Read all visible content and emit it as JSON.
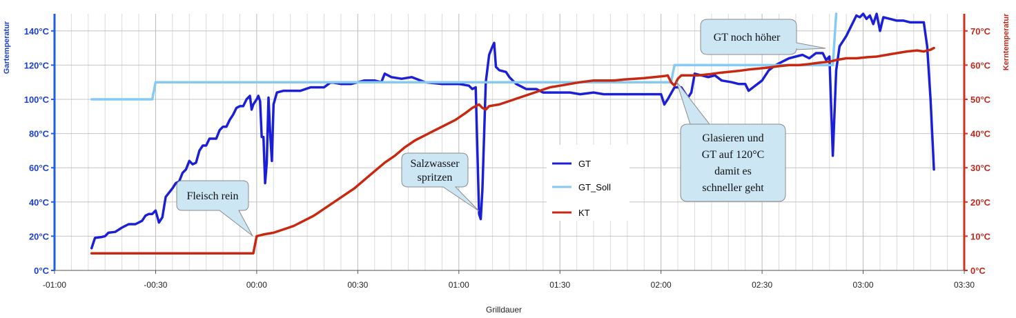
{
  "chart_data": {
    "type": "line",
    "xlabel": "Grilldauer",
    "ylabel_left": "Gartemperatur",
    "ylabel_right": "Kerntemperatur",
    "x_unit": "minutes",
    "xlim": [
      -60,
      210
    ],
    "x_ticks": [
      {
        "v": -60,
        "label": "-01:00"
      },
      {
        "v": -30,
        "label": "-00:30"
      },
      {
        "v": 0,
        "label": "00:00"
      },
      {
        "v": 30,
        "label": "00:30"
      },
      {
        "v": 60,
        "label": "01:00"
      },
      {
        "v": 90,
        "label": "01:30"
      },
      {
        "v": 120,
        "label": "02:00"
      },
      {
        "v": 150,
        "label": "02:30"
      },
      {
        "v": 180,
        "label": "03:00"
      },
      {
        "v": 210,
        "label": "03:30"
      }
    ],
    "ylim_left": [
      0,
      150
    ],
    "y_ticks_left": [
      {
        "v": 0,
        "label": "0°C"
      },
      {
        "v": 20,
        "label": "20°C"
      },
      {
        "v": 40,
        "label": "40°C"
      },
      {
        "v": 60,
        "label": "60°C"
      },
      {
        "v": 80,
        "label": "80°C"
      },
      {
        "v": 100,
        "label": "100°C"
      },
      {
        "v": 120,
        "label": "120°C"
      },
      {
        "v": 140,
        "label": "140°C"
      }
    ],
    "ylim_right": [
      0,
      75
    ],
    "y_ticks_right": [
      {
        "v": 0,
        "label": "0°C"
      },
      {
        "v": 10,
        "label": "10°C"
      },
      {
        "v": 20,
        "label": "20°C"
      },
      {
        "v": 30,
        "label": "30°C"
      },
      {
        "v": 40,
        "label": "40°C"
      },
      {
        "v": 50,
        "label": "50°C"
      },
      {
        "v": 60,
        "label": "60°C"
      },
      {
        "v": 70,
        "label": "70°C"
      }
    ],
    "grid": true,
    "legend_position": "center",
    "series": [
      {
        "name": "GT",
        "axis": "left",
        "color": "#1b1fd6",
        "points": [
          [
            -49,
            13
          ],
          [
            -48,
            19
          ],
          [
            -46,
            19.5
          ],
          [
            -45,
            20
          ],
          [
            -44,
            22
          ],
          [
            -42,
            22.5
          ],
          [
            -40,
            25
          ],
          [
            -38,
            27
          ],
          [
            -36,
            27
          ],
          [
            -34,
            29
          ],
          [
            -33,
            32
          ],
          [
            -32,
            33
          ],
          [
            -31,
            33
          ],
          [
            -30,
            35
          ],
          [
            -29,
            28
          ],
          [
            -28,
            31
          ],
          [
            -27,
            43
          ],
          [
            -25,
            48
          ],
          [
            -24,
            51
          ],
          [
            -23,
            52
          ],
          [
            -22,
            57
          ],
          [
            -21,
            59
          ],
          [
            -20,
            64
          ],
          [
            -19,
            62
          ],
          [
            -18,
            63
          ],
          [
            -17,
            70
          ],
          [
            -16,
            73
          ],
          [
            -15,
            73
          ],
          [
            -14,
            77
          ],
          [
            -13,
            77
          ],
          [
            -12,
            77
          ],
          [
            -11,
            82
          ],
          [
            -10,
            84
          ],
          [
            -9,
            84
          ],
          [
            -8,
            88
          ],
          [
            -7,
            91
          ],
          [
            -6,
            95
          ],
          [
            -5,
            96
          ],
          [
            -4,
            96
          ],
          [
            -3,
            100
          ],
          [
            -2,
            102
          ],
          [
            -1.5,
            94
          ],
          [
            -1,
            97
          ],
          [
            0,
            100
          ],
          [
            0.5,
            102
          ],
          [
            1,
            99
          ],
          [
            1.5,
            78
          ],
          [
            2,
            78
          ],
          [
            2.5,
            51
          ],
          [
            3,
            63
          ],
          [
            3.5,
            101
          ],
          [
            4,
            80
          ],
          [
            4.5,
            64
          ],
          [
            5,
            97
          ],
          [
            6,
            104
          ],
          [
            8,
            105
          ],
          [
            10,
            105
          ],
          [
            13,
            105
          ],
          [
            16,
            107
          ],
          [
            20,
            107
          ],
          [
            22,
            110
          ],
          [
            25,
            109
          ],
          [
            28,
            109
          ],
          [
            32,
            111
          ],
          [
            35,
            111
          ],
          [
            37,
            110
          ],
          [
            38,
            115
          ],
          [
            40,
            113
          ],
          [
            43,
            112
          ],
          [
            46,
            113
          ],
          [
            50,
            110
          ],
          [
            55,
            109
          ],
          [
            60,
            109
          ],
          [
            63,
            108
          ],
          [
            64,
            106
          ],
          [
            65,
            107
          ],
          [
            66,
            33
          ],
          [
            66.5,
            30
          ],
          [
            67,
            47
          ],
          [
            68,
            110
          ],
          [
            69,
            126
          ],
          [
            70,
            131
          ],
          [
            70.5,
            133
          ],
          [
            71,
            119
          ],
          [
            72,
            117
          ],
          [
            74,
            116
          ],
          [
            75,
            113
          ],
          [
            77,
            109
          ],
          [
            79,
            107
          ],
          [
            80,
            106
          ],
          [
            83,
            106
          ],
          [
            85,
            104
          ],
          [
            87,
            104
          ],
          [
            90,
            104
          ],
          [
            93,
            104
          ],
          [
            96,
            103
          ],
          [
            100,
            104
          ],
          [
            103,
            103
          ],
          [
            106,
            103
          ],
          [
            110,
            103
          ],
          [
            113,
            103
          ],
          [
            116,
            103
          ],
          [
            118,
            103
          ],
          [
            120,
            103
          ],
          [
            121,
            97
          ],
          [
            122,
            100
          ],
          [
            124,
            107
          ],
          [
            126,
            107
          ],
          [
            128,
            101
          ],
          [
            129,
            104
          ],
          [
            130,
            115
          ],
          [
            132,
            114
          ],
          [
            134,
            113
          ],
          [
            136,
            114
          ],
          [
            138,
            111
          ],
          [
            141,
            110
          ],
          [
            143,
            109
          ],
          [
            145,
            109
          ],
          [
            146,
            105
          ],
          [
            148,
            108
          ],
          [
            150,
            111
          ],
          [
            152,
            117
          ],
          [
            154,
            120
          ],
          [
            156,
            122
          ],
          [
            158,
            124
          ],
          [
            160,
            125
          ],
          [
            162,
            126
          ],
          [
            164,
            124
          ],
          [
            166,
            127
          ],
          [
            168,
            127
          ],
          [
            169,
            123
          ],
          [
            170,
            125
          ],
          [
            171,
            67
          ],
          [
            172,
            117
          ],
          [
            173,
            131
          ],
          [
            174,
            134
          ],
          [
            175,
            137
          ],
          [
            176,
            141
          ],
          [
            177,
            145
          ],
          [
            178,
            149
          ],
          [
            179,
            148
          ],
          [
            180,
            150
          ],
          [
            181,
            147
          ],
          [
            182,
            149
          ],
          [
            183,
            144
          ],
          [
            184,
            150
          ],
          [
            185,
            140
          ],
          [
            186,
            148
          ],
          [
            188,
            147
          ],
          [
            190,
            146
          ],
          [
            192,
            146
          ],
          [
            194,
            145
          ],
          [
            196,
            145
          ],
          [
            198,
            145
          ],
          [
            199,
            131
          ],
          [
            200,
            100
          ],
          [
            201,
            59
          ]
        ]
      },
      {
        "name": "GT_Soll",
        "axis": "left",
        "color": "#86c9f2",
        "points": [
          [
            -49,
            100
          ],
          [
            -31,
            100
          ],
          [
            -30,
            110
          ],
          [
            123,
            110
          ],
          [
            124,
            120
          ],
          [
            171,
            120
          ],
          [
            172,
            150
          ]
        ]
      },
      {
        "name": "KT",
        "axis": "right",
        "color": "#c8280f",
        "points": [
          [
            -49,
            5
          ],
          [
            -10,
            5
          ],
          [
            -5,
            5
          ],
          [
            -1,
            5
          ],
          [
            0,
            10
          ],
          [
            2,
            10.5
          ],
          [
            5,
            11
          ],
          [
            8,
            12
          ],
          [
            11,
            13
          ],
          [
            14,
            14.5
          ],
          [
            17,
            16
          ],
          [
            20,
            18
          ],
          [
            23,
            20
          ],
          [
            26,
            22
          ],
          [
            29,
            24
          ],
          [
            32,
            26.5
          ],
          [
            35,
            29
          ],
          [
            38,
            31.5
          ],
          [
            41,
            33.5
          ],
          [
            44,
            36
          ],
          [
            47,
            38
          ],
          [
            50,
            39.5
          ],
          [
            53,
            41
          ],
          [
            56,
            42.5
          ],
          [
            59,
            44
          ],
          [
            62,
            46
          ],
          [
            64,
            47.5
          ],
          [
            66,
            48.5
          ],
          [
            67,
            47.5
          ],
          [
            68,
            47
          ],
          [
            69,
            48
          ],
          [
            72,
            48.5
          ],
          [
            75,
            49.5
          ],
          [
            78,
            50.5
          ],
          [
            81,
            51.5
          ],
          [
            84,
            52.5
          ],
          [
            87,
            53.5
          ],
          [
            90,
            54
          ],
          [
            93,
            54.5
          ],
          [
            96,
            55
          ],
          [
            100,
            55.5
          ],
          [
            103,
            55.5
          ],
          [
            106,
            55.5
          ],
          [
            109,
            55.8
          ],
          [
            112,
            56
          ],
          [
            115,
            56.2
          ],
          [
            118,
            56.5
          ],
          [
            121,
            56.8
          ],
          [
            122,
            57
          ],
          [
            123,
            55
          ],
          [
            124,
            54
          ],
          [
            125,
            56
          ],
          [
            126,
            57
          ],
          [
            128,
            57
          ],
          [
            131,
            57
          ],
          [
            134,
            57.3
          ],
          [
            137,
            57.7
          ],
          [
            140,
            58
          ],
          [
            143,
            58.3
          ],
          [
            146,
            58.7
          ],
          [
            149,
            59
          ],
          [
            152,
            59.3
          ],
          [
            155,
            59.7
          ],
          [
            158,
            60
          ],
          [
            161,
            60
          ],
          [
            164,
            60.3
          ],
          [
            167,
            60.7
          ],
          [
            170,
            61
          ],
          [
            172,
            61.5
          ],
          [
            175,
            62
          ],
          [
            178,
            62
          ],
          [
            181,
            62.3
          ],
          [
            184,
            62.5
          ],
          [
            187,
            63
          ],
          [
            190,
            63.5
          ],
          [
            193,
            64
          ],
          [
            196,
            64.3
          ],
          [
            198,
            64
          ],
          [
            200,
            64.5
          ],
          [
            201,
            65
          ]
        ]
      }
    ],
    "annotations": [
      {
        "id": "fleisch",
        "lines": [
          "Fleisch rein"
        ]
      },
      {
        "id": "salz",
        "lines": [
          "Salzwasser",
          "spritzen"
        ]
      },
      {
        "id": "glasieren",
        "lines": [
          "Glasieren und",
          "GT auf 120°C",
          "damit es",
          "schneller geht"
        ]
      },
      {
        "id": "hoeher",
        "lines": [
          "GT noch höher"
        ]
      }
    ]
  }
}
